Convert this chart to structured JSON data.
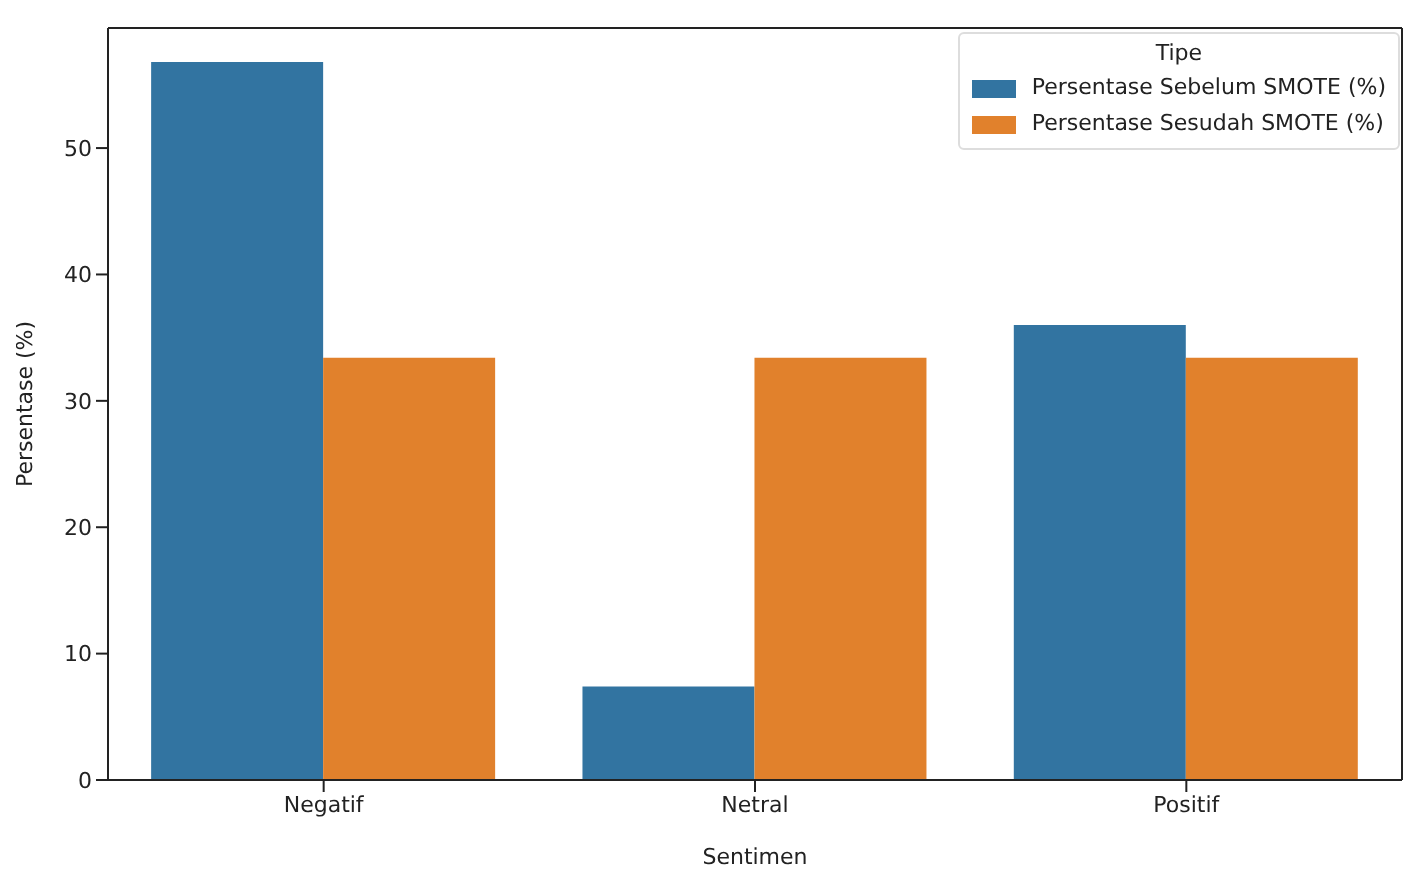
{
  "chart_data": {
    "type": "bar",
    "xlabel": "Sentimen",
    "ylabel": "Persentase (%)",
    "legend_title": "Tipe",
    "categories": [
      "Negatif",
      "Netral",
      "Positif"
    ],
    "series": [
      {
        "name": "Persentase Sebelum SMOTE (%)",
        "color": "#3274a1",
        "values": [
          56.8,
          7.4,
          36.0
        ]
      },
      {
        "name": "Persentase Sesudah SMOTE (%)",
        "color": "#e1812c",
        "values": [
          33.4,
          33.4,
          33.4
        ]
      }
    ],
    "ylim": [
      0,
      59.5
    ],
    "yticks": [
      0,
      10,
      20,
      30,
      40,
      50
    ],
    "legend": "top right"
  }
}
